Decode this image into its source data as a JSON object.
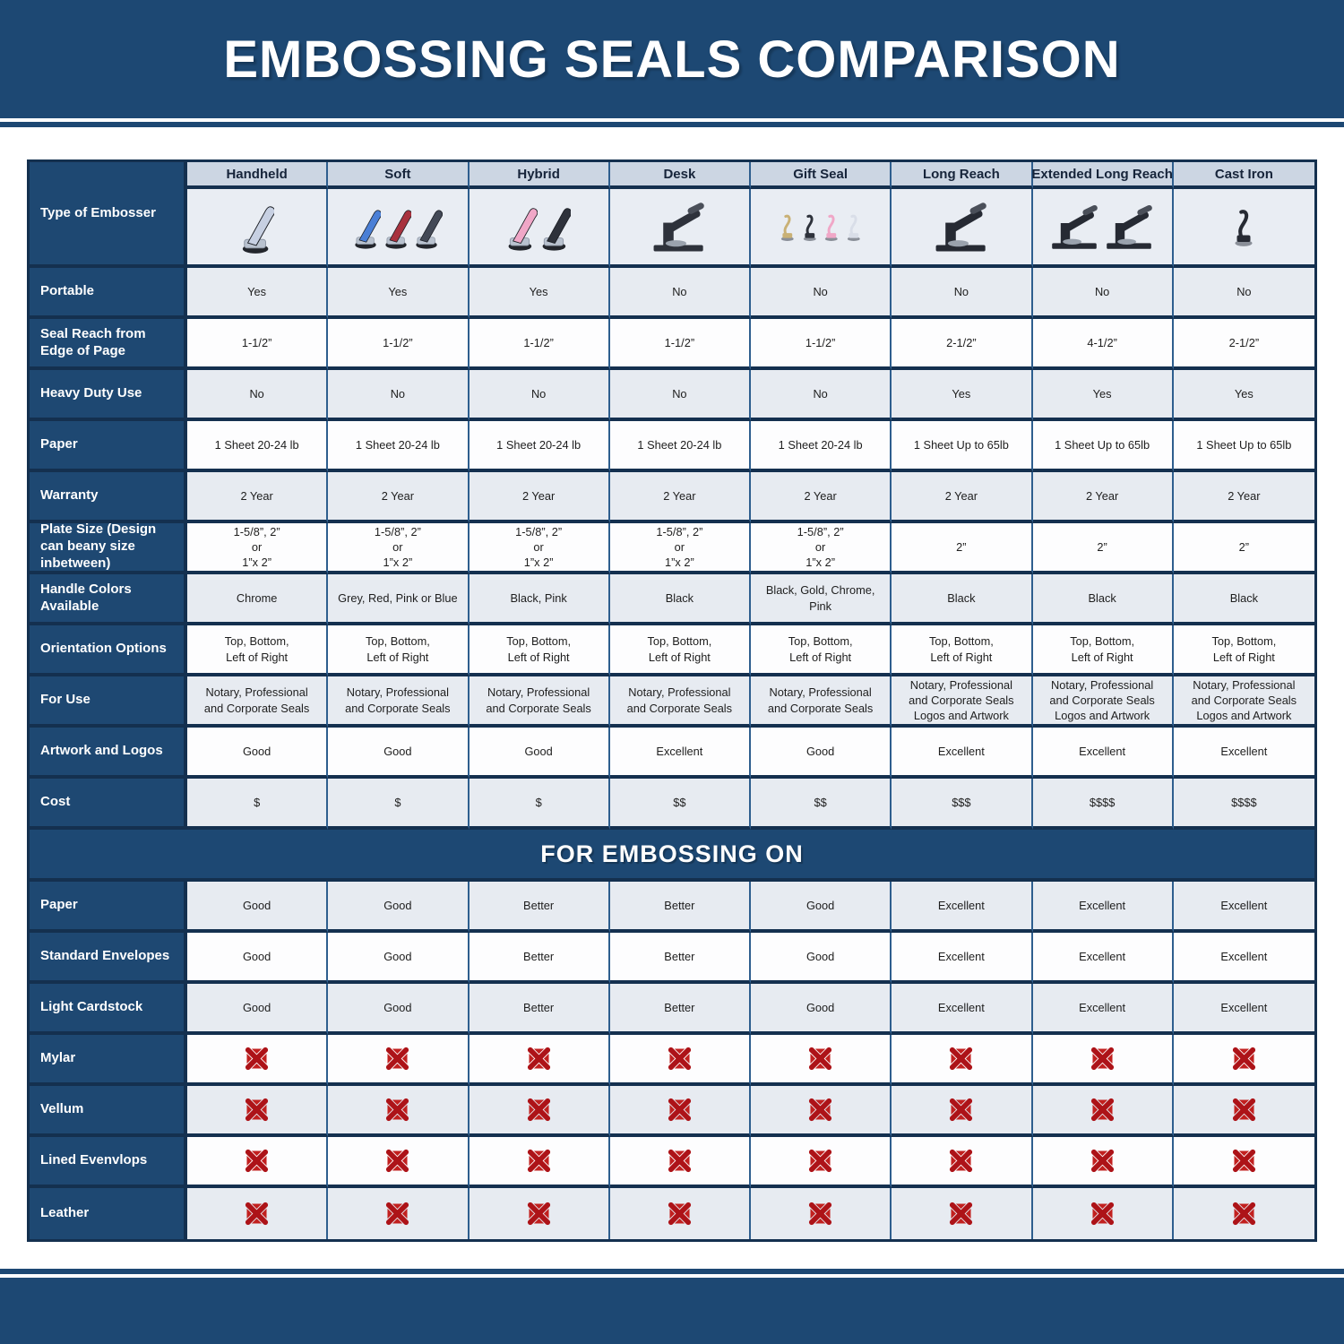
{
  "title": "EMBOSSING SEALS COMPARISON",
  "colors": {
    "band_blue": "#1d4873",
    "label_blue": "#1e4872",
    "border_dark": "#14304f",
    "border_mid": "#2e5e8e",
    "header_row_bg": "#ccd6e3",
    "image_row_bg": "#e9edf3",
    "row_gray": "#e7ebf1",
    "row_white": "#fdfdfe",
    "x_red": "#ad1318"
  },
  "icons": {
    "not_supported": "red-x-icon"
  },
  "embosser_images": [
    {
      "icon": "handheld-embosser-icon",
      "style": "handheld",
      "device_colors": [
        "#c7d0e2"
      ]
    },
    {
      "icon": "soft-embosser-icon",
      "style": "handheld",
      "device_colors": [
        "#4a7fd6",
        "#a8323e",
        "#434956"
      ]
    },
    {
      "icon": "hybrid-embosser-icon",
      "style": "handheld",
      "device_colors": [
        "#f0a7c7",
        "#2e323b"
      ]
    },
    {
      "icon": "desk-embosser-icon",
      "style": "desk",
      "device_colors": [
        "#2e323b"
      ]
    },
    {
      "icon": "gift-seal-embosser-icon",
      "style": "upright",
      "device_colors": [
        "#c9b176",
        "#2e323b",
        "#f0a7c7",
        "#d9dee8"
      ]
    },
    {
      "icon": "long-reach-embosser-icon",
      "style": "desk",
      "device_colors": [
        "#262a33"
      ]
    },
    {
      "icon": "extended-long-reach-embosser-icon",
      "style": "desk",
      "device_colors": [
        "#262a33",
        "#262a33"
      ]
    },
    {
      "icon": "cast-iron-embosser-icon",
      "style": "upright",
      "device_colors": [
        "#262a33"
      ]
    }
  ],
  "chart_data": {
    "type": "table",
    "title": "EMBOSSING SEALS COMPARISON",
    "section_title": "FOR EMBOSSING ON",
    "corner_label": "Type of Embosser",
    "columns": [
      "Handheld",
      "Soft",
      "Hybrid",
      "Desk",
      "Gift Seal",
      "Long Reach",
      "Extended Long Reach",
      "Cast Iron"
    ],
    "spec_rows": [
      {
        "label": "Portable",
        "values": [
          "Yes",
          "Yes",
          "Yes",
          "No",
          "No",
          "No",
          "No",
          "No"
        ]
      },
      {
        "label": "Seal Reach from Edge of Page",
        "values": [
          "1-1/2”",
          "1-1/2”",
          "1-1/2”",
          "1-1/2”",
          "1-1/2”",
          "2-1/2”",
          "4-1/2”",
          "2-1/2”"
        ]
      },
      {
        "label": "Heavy Duty Use",
        "values": [
          "No",
          "No",
          "No",
          "No",
          "No",
          "Yes",
          "Yes",
          "Yes"
        ]
      },
      {
        "label": "Paper",
        "values": [
          "1 Sheet 20-24 lb",
          "1 Sheet 20-24 lb",
          "1 Sheet 20-24 lb",
          "1 Sheet 20-24 lb",
          "1 Sheet 20-24 lb",
          "1 Sheet Up to 65lb",
          "1 Sheet Up to 65lb",
          "1 Sheet Up to 65lb"
        ]
      },
      {
        "label": "Warranty",
        "values": [
          "2 Year",
          "2 Year",
          "2 Year",
          "2 Year",
          "2 Year",
          "2 Year",
          "2 Year",
          "2 Year"
        ]
      },
      {
        "label": "Plate Size (Design can beany size inbetween)",
        "values": [
          "1-5/8”, 2”\nor\n1”x 2”",
          "1-5/8”, 2”\nor\n1”x 2”",
          "1-5/8”, 2”\nor\n1”x 2”",
          "1-5/8”, 2”\nor\n1”x 2”",
          "1-5/8”, 2”\nor\n1”x 2”",
          "2”",
          "2”",
          "2”"
        ]
      },
      {
        "label": "Handle Colors Available",
        "values": [
          "Chrome",
          "Grey, Red, Pink or Blue",
          "Black, Pink",
          "Black",
          "Black, Gold, Chrome, Pink",
          "Black",
          "Black",
          "Black"
        ]
      },
      {
        "label": "Orientation Options",
        "values": [
          "Top, Bottom,\nLeft of Right",
          "Top, Bottom,\nLeft of Right",
          "Top, Bottom,\nLeft of Right",
          "Top, Bottom,\nLeft of Right",
          "Top, Bottom,\nLeft of Right",
          "Top, Bottom,\nLeft of Right",
          "Top, Bottom,\nLeft of Right",
          "Top, Bottom,\nLeft of Right"
        ]
      },
      {
        "label": "For Use",
        "values": [
          "Notary, Professional\nand Corporate Seals",
          "Notary, Professional\nand Corporate Seals",
          "Notary, Professional\nand Corporate Seals",
          "Notary, Professional\nand Corporate Seals",
          "Notary, Professional\nand Corporate Seals",
          "Notary, Professional\nand Corporate Seals\nLogos and Artwork",
          "Notary, Professional\nand Corporate Seals\nLogos and Artwork",
          "Notary, Professional\nand Corporate Seals\nLogos and Artwork"
        ]
      },
      {
        "label": "Artwork and Logos",
        "values": [
          "Good",
          "Good",
          "Good",
          "Excellent",
          "Good",
          "Excellent",
          "Excellent",
          "Excellent"
        ]
      },
      {
        "label": "Cost",
        "values": [
          "$",
          "$",
          "$",
          "$$",
          "$$",
          "$$$",
          "$$$$",
          "$$$$"
        ]
      }
    ],
    "embossing_rows": [
      {
        "label": "Paper",
        "values": [
          "Good",
          "Good",
          "Better",
          "Better",
          "Good",
          "Excellent",
          "Excellent",
          "Excellent"
        ]
      },
      {
        "label": "Standard Envelopes",
        "values": [
          "Good",
          "Good",
          "Better",
          "Better",
          "Good",
          "Excellent",
          "Excellent",
          "Excellent"
        ]
      },
      {
        "label": "Light Cardstock",
        "values": [
          "Good",
          "Good",
          "Better",
          "Better",
          "Good",
          "Excellent",
          "Excellent",
          "Excellent"
        ]
      },
      {
        "label": "Mylar",
        "values": [
          "x",
          "x",
          "x",
          "x",
          "x",
          "x",
          "x",
          "x"
        ]
      },
      {
        "label": "Vellum",
        "values": [
          "x",
          "x",
          "x",
          "x",
          "x",
          "x",
          "x",
          "x"
        ]
      },
      {
        "label": "Lined Evenvlops",
        "values": [
          "x",
          "x",
          "x",
          "x",
          "x",
          "x",
          "x",
          "x"
        ]
      },
      {
        "label": "Leather",
        "values": [
          "x",
          "x",
          "x",
          "x",
          "x",
          "x",
          "x",
          "x"
        ]
      }
    ]
  }
}
